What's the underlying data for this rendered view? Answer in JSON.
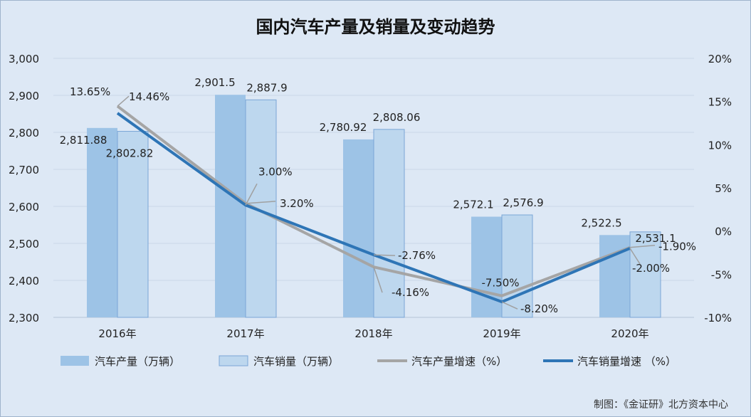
{
  "title": "国内汽车产量及销量及变动趋势",
  "source": "制图：《金证研》北方资本中心",
  "colors": {
    "production_bar": "#9dc3e6",
    "sales_bar": "#bdd7ee",
    "sales_bar_border": "#7aa6d6",
    "production_growth_line": "#a5a5a5",
    "sales_growth_line": "#2e75b6",
    "grid": "#c9d6e6",
    "callout": "#a0a0a0"
  },
  "chart_data": {
    "type": "bar",
    "categories": [
      "2016年",
      "2017年",
      "2018年",
      "2019年",
      "2020年"
    ],
    "left_axis": {
      "min": 2300,
      "max": 3000,
      "step": 100,
      "tick_labels": [
        "2,300",
        "2,400",
        "2,500",
        "2,600",
        "2,700",
        "2,800",
        "2,900",
        "3,000"
      ]
    },
    "right_axis": {
      "min": -10,
      "max": 20,
      "step": 5,
      "tick_labels": [
        "-10%",
        "-5%",
        "0%",
        "5%",
        "10%",
        "15%",
        "20%"
      ]
    },
    "series": [
      {
        "name": "汽车产量（万辆）",
        "kind": "bar",
        "axis": "left",
        "values": [
          2811.88,
          2901.5,
          2780.92,
          2572.1,
          2522.5
        ],
        "labels": [
          "2,811.88",
          "2,901.5",
          "2,780.92",
          "2,572.1",
          "2,522.5"
        ]
      },
      {
        "name": "汽车销量（万辆）",
        "kind": "bar",
        "axis": "left",
        "values": [
          2802.82,
          2887.9,
          2808.06,
          2576.9,
          2531.1
        ],
        "labels": [
          "2,802.82",
          "2,887.9",
          "2,808.06",
          "2,576.9",
          "2,531.1"
        ]
      },
      {
        "name": "汽车产量增速（%）",
        "kind": "line",
        "axis": "right",
        "values": [
          14.46,
          3.2,
          -4.16,
          -7.5,
          -1.9
        ],
        "labels": [
          "14.46%",
          "3.20%",
          "-4.16%",
          "-7.50%",
          "-1.90%"
        ]
      },
      {
        "name": "汽车销量增速 （%）",
        "kind": "line",
        "axis": "right",
        "values": [
          13.65,
          3.0,
          -2.76,
          -8.2,
          -2.0
        ],
        "labels": [
          "13.65%",
          "3.00%",
          "-2.76%",
          "-8.20%",
          "-2.00%"
        ]
      }
    ]
  }
}
